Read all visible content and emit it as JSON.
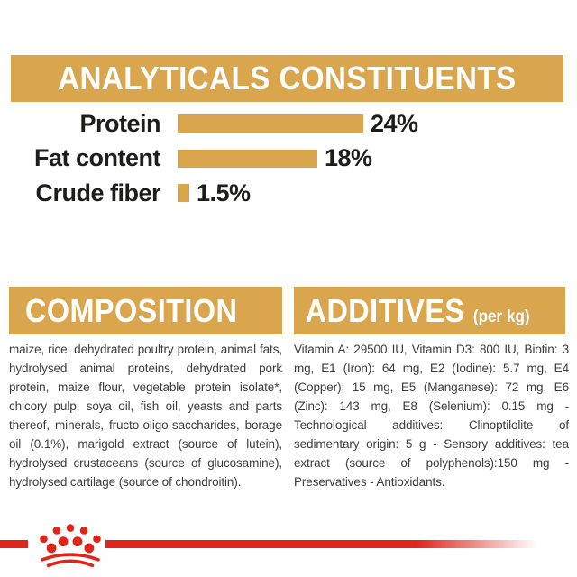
{
  "page": {
    "background": "#ffffff",
    "accent_gold": "#d9a54d",
    "brand_red": "#e0251a",
    "text_dark": "#1d1d1b",
    "text_body": "#3c3c3c"
  },
  "analyticals": {
    "title": "ANALYTICALS CONSTITUENTS"
  },
  "chart_data": {
    "type": "bar",
    "orientation": "horizontal",
    "title": "ANALYTICALS CONSTITUENTS",
    "categories": [
      "Protein",
      "Fat content",
      "Crude fiber"
    ],
    "values": [
      24,
      18,
      1.5
    ],
    "value_labels": [
      "24%",
      "18%",
      "1.5%"
    ],
    "unit": "%",
    "xlim": [
      0,
      24
    ],
    "bar_color": "#d9a54d",
    "grid": false,
    "legend": false
  },
  "composition": {
    "title": "COMPOSITION",
    "body": "maize, rice, dehydrated poultry protein, animal fats, hydrolysed animal proteins, dehydrated pork protein, maize flour, vegetable protein isolate*, chicory pulp, soya oil, fish oil, yeasts and parts thereof, minerals, fructo-oligo-saccharides, borage oil (0.1%), marigold extract (source of lutein), hydrolysed crustaceans (source of glucosamine), hydrolysed cartilage (source of chondroitin)."
  },
  "additives": {
    "title": "ADDITIVES",
    "subtitle": "(per kg)",
    "body": "Vitamin A: 29500 IU, Vitamin D3: 800 IU, Biotin: 3 mg, E1 (Iron): 64 mg, E2 (Iodine): 5.7 mg, E4 (Copper): 15 mg, E5 (Manganese): 72 mg, E6 (Zinc): 143 mg, E8 (Selenium): 0.15 mg - Technological additives: Clinoptilolite of sedimentary origin: 5 g - Sensory additives: tea extract (source of polyphenols):150 mg - Preservatives - Antioxidants."
  },
  "footer": {
    "logo": "royal-canin-crown"
  }
}
